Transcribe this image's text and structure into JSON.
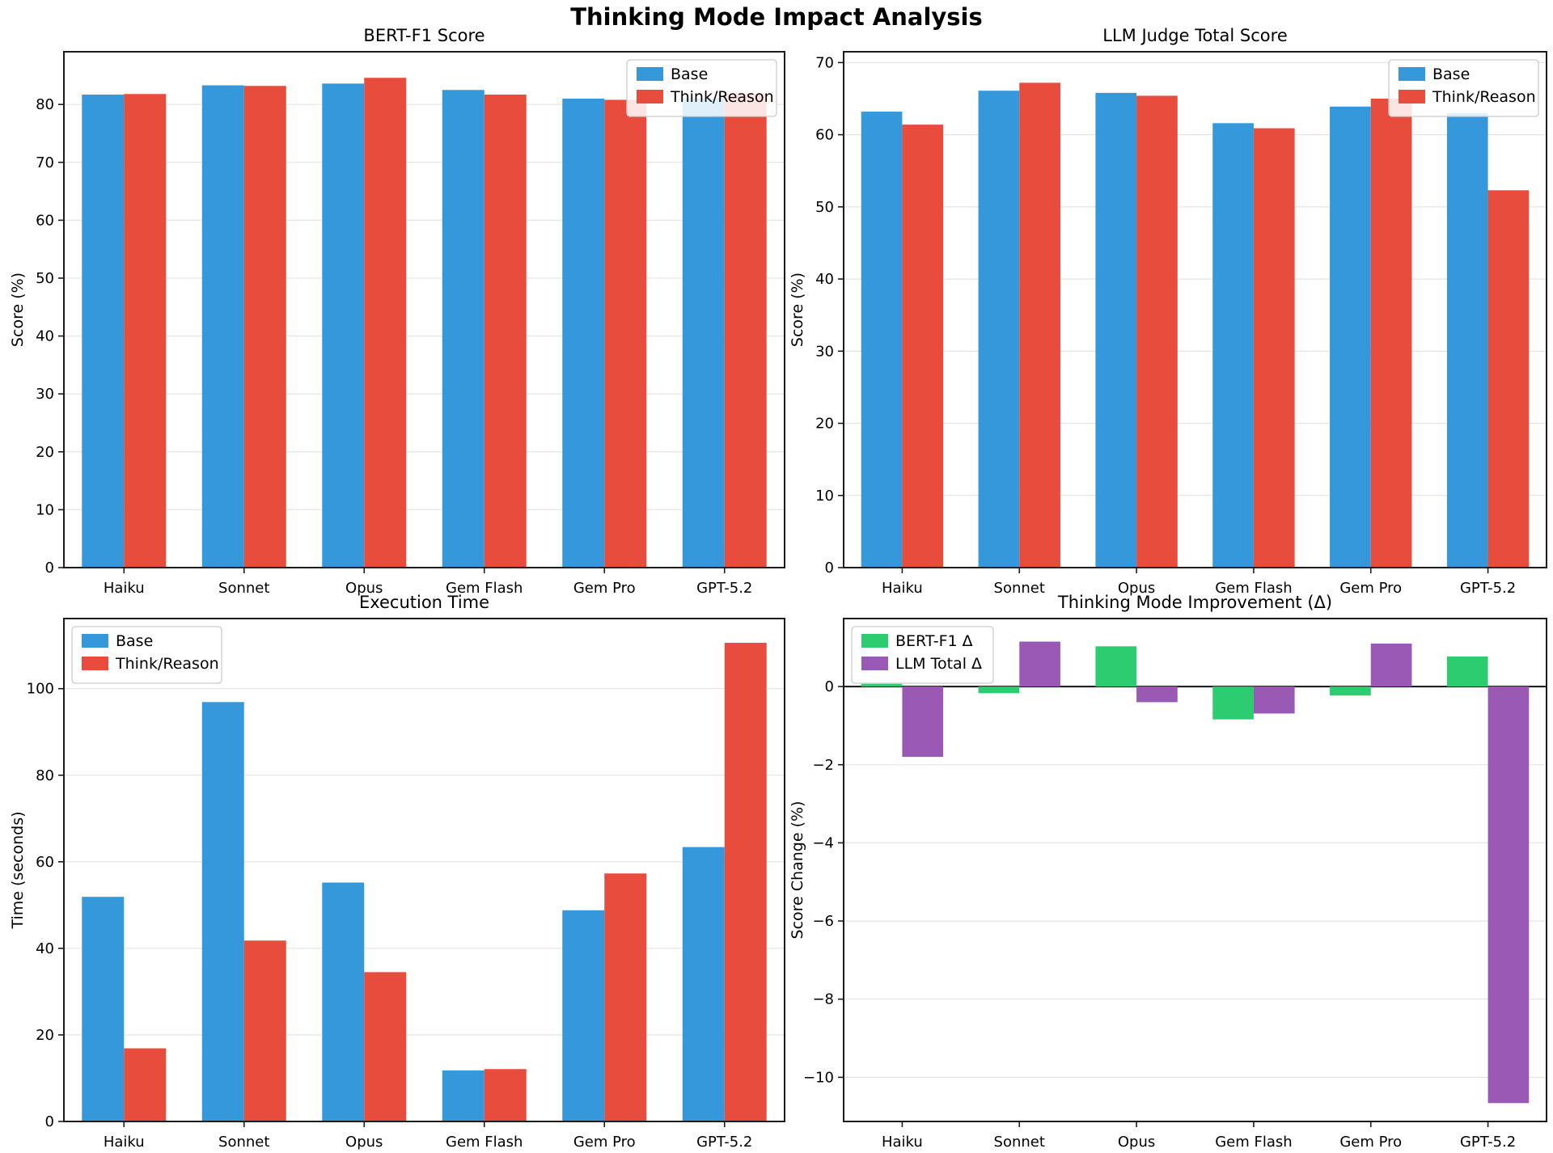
{
  "title": "Thinking Mode Impact Analysis",
  "palette": {
    "base": "#3498db",
    "think": "#e74c3c",
    "bert_delta": "#2ecc71",
    "llm_delta": "#9b59b6",
    "grid": "#e6e6e6",
    "axis": "#1c1c1c",
    "legend_border": "#cccccc"
  },
  "categories": [
    "Haiku",
    "Sonnet",
    "Opus",
    "Gem Flash",
    "Gem Pro",
    "GPT-5.2"
  ],
  "chart_data": [
    {
      "type": "bar",
      "title": "BERT-F1 Score",
      "ylabel": "Score (%)",
      "ylim": [
        0,
        89.1
      ],
      "yticks": [
        0,
        10,
        20,
        30,
        40,
        50,
        60,
        70,
        80
      ],
      "grid": true,
      "legend_position": "upper-right",
      "categories": [
        "Haiku",
        "Sonnet",
        "Opus",
        "Gem Flash",
        "Gem Pro",
        "GPT-5.2"
      ],
      "series": [
        {
          "name": "Base",
          "color": "#3498db",
          "values": [
            81.7,
            83.3,
            83.6,
            82.5,
            81.0,
            81.1
          ]
        },
        {
          "name": "Think/Reason",
          "color": "#e74c3c",
          "values": [
            81.8,
            83.2,
            84.6,
            81.7,
            80.8,
            81.9
          ]
        }
      ]
    },
    {
      "type": "bar",
      "title": "LLM Judge Total Score",
      "ylabel": "Score (%)",
      "ylim": [
        0,
        71.5
      ],
      "yticks": [
        0,
        10,
        20,
        30,
        40,
        50,
        60,
        70
      ],
      "grid": true,
      "legend_position": "upper-right",
      "categories": [
        "Haiku",
        "Sonnet",
        "Opus",
        "Gem Flash",
        "Gem Pro",
        "GPT-5.2"
      ],
      "series": [
        {
          "name": "Base",
          "color": "#3498db",
          "values": [
            63.2,
            66.1,
            65.8,
            61.6,
            63.9,
            63.0
          ]
        },
        {
          "name": "Think/Reason",
          "color": "#e74c3c",
          "values": [
            61.4,
            67.2,
            65.4,
            60.9,
            65.0,
            52.3
          ]
        }
      ]
    },
    {
      "type": "bar",
      "title": "Execution Time",
      "ylabel": "Time (seconds)",
      "ylim": [
        0,
        116.2
      ],
      "yticks": [
        0,
        20,
        40,
        60,
        80,
        100
      ],
      "grid": true,
      "legend_position": "upper-left",
      "categories": [
        "Haiku",
        "Sonnet",
        "Opus",
        "Gem Flash",
        "Gem Pro",
        "GPT-5.2"
      ],
      "series": [
        {
          "name": "Base",
          "color": "#3498db",
          "values": [
            51.9,
            96.9,
            55.2,
            11.8,
            48.8,
            63.4
          ]
        },
        {
          "name": "Think/Reason",
          "color": "#e74c3c",
          "values": [
            16.9,
            41.8,
            34.5,
            12.1,
            57.3,
            110.6
          ]
        }
      ]
    },
    {
      "type": "bar",
      "title": "Thinking Mode Improvement (Δ)",
      "ylabel": "Score Change (%)",
      "ylim": [
        -11.13,
        1.74
      ],
      "yticks": [
        0,
        -2,
        -4,
        -6,
        -8,
        -10
      ],
      "grid": true,
      "zero_line": true,
      "legend_position": "upper-left",
      "categories": [
        "Haiku",
        "Sonnet",
        "Opus",
        "Gem Flash",
        "Gem Pro",
        "GPT-5.2"
      ],
      "series": [
        {
          "name": "BERT-F1 Δ",
          "color": "#2ecc71",
          "values": [
            0.07,
            -0.17,
            1.03,
            -0.84,
            -0.23,
            0.77
          ]
        },
        {
          "name": "LLM Total Δ",
          "color": "#9b59b6",
          "values": [
            -1.8,
            1.15,
            -0.4,
            -0.69,
            1.1,
            -10.66
          ]
        }
      ]
    }
  ]
}
